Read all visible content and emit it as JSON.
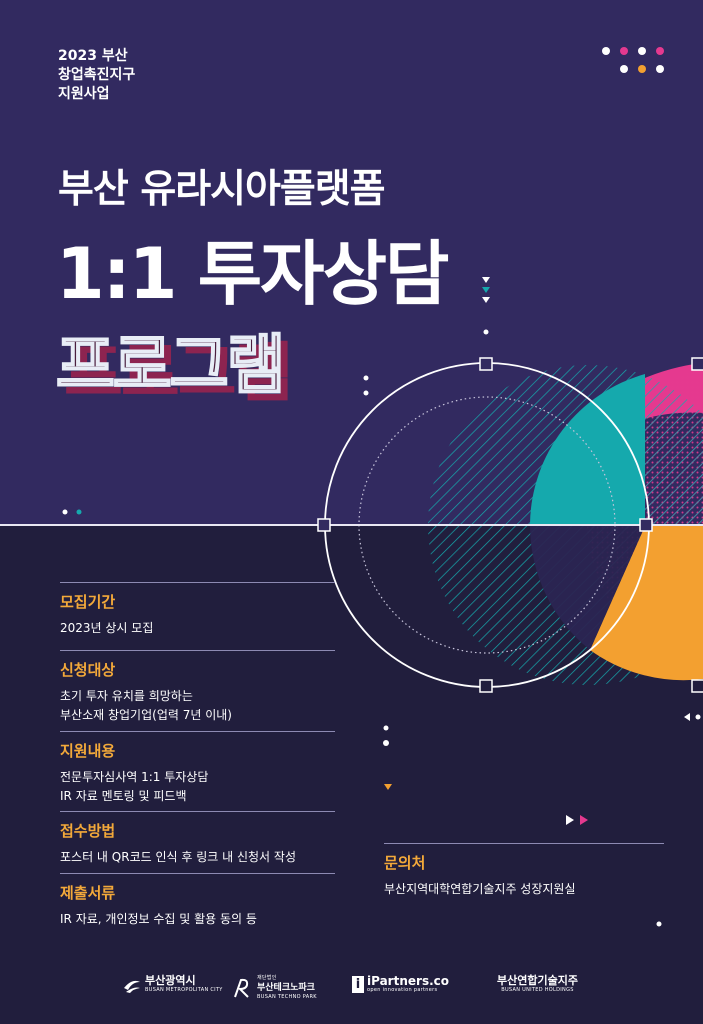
{
  "header": {
    "year_line": "2023 부산",
    "line2": "창업촉진지구",
    "line3": "지원사업"
  },
  "title": {
    "line1": "부산 유라시아플랫폼",
    "line2": "1:1 투자상담",
    "line3": "프로그램"
  },
  "colors": {
    "navy_top": "#322a60",
    "navy_bottom": "#211e3d",
    "teal": "#15a9ad",
    "magenta": "#e5398f",
    "orange": "#f3a030",
    "accent_label": "#f3a93a"
  },
  "info": [
    {
      "label": "모집기간",
      "lines": [
        "2023년 상시 모집"
      ]
    },
    {
      "label": "신청대상",
      "lines": [
        "초기 투자 유치를 희망하는",
        "부산소재 창업기업(업력 7년 이내)"
      ]
    },
    {
      "label": "지원내용",
      "lines": [
        "전문투자심사역 1:1 투자상담",
        "IR 자료 멘토링 및 피드백"
      ]
    },
    {
      "label": "접수방법",
      "lines": [
        "포스터 내 QR코드 인식 후 링크 내 신청서 작성"
      ]
    },
    {
      "label": "제출서류",
      "lines": [
        "IR 자료, 개인정보 수집 및 활용 동의 등"
      ]
    }
  ],
  "contact": {
    "label": "문의처",
    "text": "부산지역대학연합기술지주 성장지원실"
  },
  "logos": {
    "busan_city": {
      "main": "부산광역시",
      "sub": "BUSAN METROPOLITAN CITY"
    },
    "techno_park": {
      "prefix": "재단법인",
      "main": "부산테크노파크",
      "sub": "BUSAN TECHNO PARK"
    },
    "ipartners": {
      "main": "iPartners.co",
      "sub": "open innovation partners"
    },
    "united": {
      "main": "부산연합기술지주",
      "sub": "BUSAN UNITED HOLDINGS"
    }
  }
}
